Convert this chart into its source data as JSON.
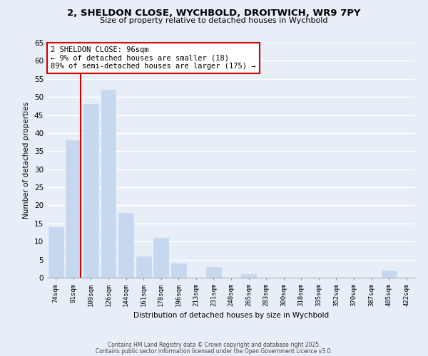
{
  "title_line1": "2, SHELDON CLOSE, WYCHBOLD, DROITWICH, WR9 7PY",
  "title_line2": "Size of property relative to detached houses in Wychbold",
  "bar_labels": [
    "74sqm",
    "91sqm",
    "109sqm",
    "126sqm",
    "144sqm",
    "161sqm",
    "178sqm",
    "196sqm",
    "213sqm",
    "231sqm",
    "248sqm",
    "265sqm",
    "283sqm",
    "300sqm",
    "318sqm",
    "335sqm",
    "352sqm",
    "370sqm",
    "387sqm",
    "405sqm",
    "422sqm"
  ],
  "bar_values": [
    14,
    38,
    48,
    52,
    18,
    6,
    11,
    4,
    0,
    3,
    0,
    1,
    0,
    0,
    0,
    0,
    0,
    0,
    0,
    2,
    0
  ],
  "bar_color": "#c5d8ef",
  "bar_edge_color": "#c5d8ef",
  "ylabel": "Number of detached properties",
  "xlabel": "Distribution of detached houses by size in Wychbold",
  "ylim": [
    0,
    65
  ],
  "yticks": [
    0,
    5,
    10,
    15,
    20,
    25,
    30,
    35,
    40,
    45,
    50,
    55,
    60,
    65
  ],
  "vline_x_idx": 1,
  "vline_color": "#cc0000",
  "annotation_title": "2 SHELDON CLOSE: 96sqm",
  "annotation_line1": "← 9% of detached houses are smaller (18)",
  "annotation_line2": "89% of semi-detached houses are larger (175) →",
  "annotation_box_color": "#ffffff",
  "annotation_box_edge": "#cc0000",
  "background_color": "#e8eef8",
  "grid_color": "#ffffff",
  "footer_line1": "Contains HM Land Registry data © Crown copyright and database right 2025.",
  "footer_line2": "Contains public sector information licensed under the Open Government Licence v3.0."
}
